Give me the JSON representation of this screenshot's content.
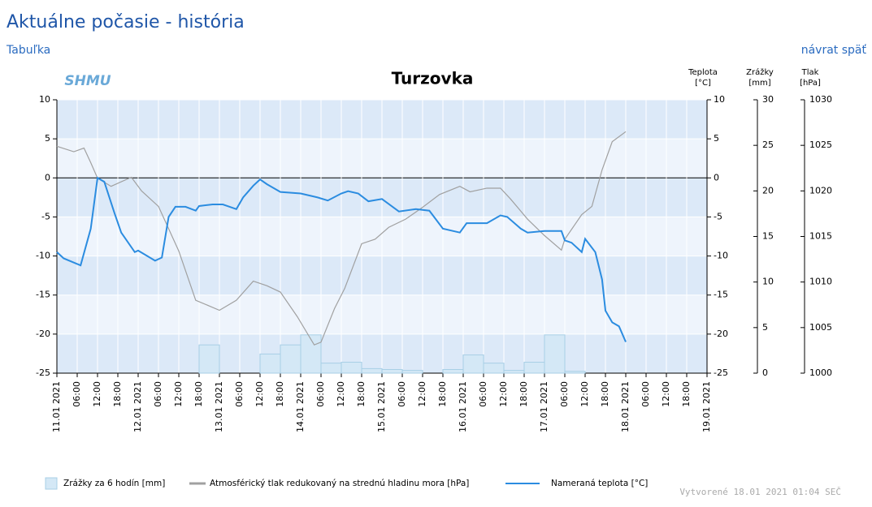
{
  "header": {
    "title": "Aktuálne počasie - história",
    "link_left": "Tabuľka",
    "link_right": "návrat späť"
  },
  "logo": "SHMU",
  "footer": "Vytvorené 18.01 2021 01:04 SEČ",
  "chart_data": {
    "type": "line",
    "title": "Turzovka",
    "y_label": [
      "Teplota",
      "[°C]"
    ],
    "y2_label": [
      "Zrážky",
      "[mm]"
    ],
    "y3_label": [
      "Tlak",
      "[hPa]"
    ],
    "ylim": [
      -25,
      10
    ],
    "yticks": [
      10,
      5,
      0,
      -5,
      -10,
      -15,
      -20,
      -25
    ],
    "y2lim": [
      0,
      30
    ],
    "y2ticks": [
      30,
      25,
      20,
      15,
      10,
      5,
      0
    ],
    "y3lim": [
      1000,
      1030
    ],
    "y3ticks": [
      1030,
      1025,
      1020,
      1015,
      1010,
      1005,
      1000
    ],
    "xlim": [
      "2021-01-11 00:00",
      "2021-01-19 00:00"
    ],
    "xticks": [
      {
        "value": "2021-01-11 00:00",
        "label": "11.01 2021"
      },
      {
        "value": "2021-01-11 06:00",
        "label": "06:00"
      },
      {
        "value": "2021-01-11 12:00",
        "label": "12:00"
      },
      {
        "value": "2021-01-11 18:00",
        "label": "18:00"
      },
      {
        "value": "2021-01-12 00:00",
        "label": "12.01 2021"
      },
      {
        "value": "2021-01-12 06:00",
        "label": "06:00"
      },
      {
        "value": "2021-01-12 12:00",
        "label": "12:00"
      },
      {
        "value": "2021-01-12 18:00",
        "label": "18:00"
      },
      {
        "value": "2021-01-13 00:00",
        "label": "13.01 2021"
      },
      {
        "value": "2021-01-13 06:00",
        "label": "06:00"
      },
      {
        "value": "2021-01-13 12:00",
        "label": "12:00"
      },
      {
        "value": "2021-01-13 18:00",
        "label": "18:00"
      },
      {
        "value": "2021-01-14 00:00",
        "label": "14.01 2021"
      },
      {
        "value": "2021-01-14 06:00",
        "label": "06:00"
      },
      {
        "value": "2021-01-14 12:00",
        "label": "12:00"
      },
      {
        "value": "2021-01-14 18:00",
        "label": "18:00"
      },
      {
        "value": "2021-01-15 00:00",
        "label": "15.01 2021"
      },
      {
        "value": "2021-01-15 06:00",
        "label": "06:00"
      },
      {
        "value": "2021-01-15 12:00",
        "label": "12:00"
      },
      {
        "value": "2021-01-15 18:00",
        "label": "18:00"
      },
      {
        "value": "2021-01-16 00:00",
        "label": "16.01 2021"
      },
      {
        "value": "2021-01-16 06:00",
        "label": "06:00"
      },
      {
        "value": "2021-01-16 12:00",
        "label": "12:00"
      },
      {
        "value": "2021-01-16 18:00",
        "label": "18:00"
      },
      {
        "value": "2021-01-17 00:00",
        "label": "17.01 2021"
      },
      {
        "value": "2021-01-17 06:00",
        "label": "06:00"
      },
      {
        "value": "2021-01-17 12:00",
        "label": "12:00"
      },
      {
        "value": "2021-01-17 18:00",
        "label": "18:00"
      },
      {
        "value": "2021-01-18 00:00",
        "label": "18.01 2021"
      },
      {
        "value": "2021-01-18 06:00",
        "label": "06:00"
      },
      {
        "value": "2021-01-18 12:00",
        "label": "12:00"
      },
      {
        "value": "2021-01-18 18:00",
        "label": "18:00"
      },
      {
        "value": "2021-01-19 00:00",
        "label": "19.01 2021"
      }
    ],
    "grid": true,
    "series": [
      {
        "name": "Zrážky za 6 hodín [mm]",
        "kind": "bar",
        "axis": "y2",
        "color": "#a8cfe6",
        "x": [
          "2021-01-12 18:00",
          "2021-01-13 12:00",
          "2021-01-13 18:00",
          "2021-01-14 00:00",
          "2021-01-14 06:00",
          "2021-01-14 12:00",
          "2021-01-14 18:00",
          "2021-01-15 00:00",
          "2021-01-15 06:00",
          "2021-01-15 18:00",
          "2021-01-16 00:00",
          "2021-01-16 06:00",
          "2021-01-16 12:00",
          "2021-01-16 18:00",
          "2021-01-17 00:00",
          "2021-01-17 06:00"
        ],
        "values": [
          3.1,
          2.1,
          3.1,
          4.2,
          1.1,
          1.2,
          0.5,
          0.4,
          0.3,
          0.4,
          2.0,
          1.1,
          0.3,
          1.2,
          4.2,
          0.2
        ]
      },
      {
        "name": "Atmosférický tlak redukovaný na strednú hladinu mora [hPa]",
        "kind": "line",
        "axis": "y3",
        "color": "#a0a0a0",
        "x": [
          "2021-01-11 00:00",
          "2021-01-11 05:00",
          "2021-01-11 08:00",
          "2021-01-11 10:00",
          "2021-01-11 12:00",
          "2021-01-11 16:00",
          "2021-01-11 22:00",
          "2021-01-12 01:00",
          "2021-01-12 06:00",
          "2021-01-12 12:00",
          "2021-01-12 17:00",
          "2021-01-13 00:00",
          "2021-01-13 05:00",
          "2021-01-13 10:00",
          "2021-01-13 14:00",
          "2021-01-13 18:00",
          "2021-01-13 23:00",
          "2021-01-14 04:00",
          "2021-01-14 06:00",
          "2021-01-14 10:00",
          "2021-01-14 13:00",
          "2021-01-14 18:00",
          "2021-01-14 22:00",
          "2021-01-15 02:00",
          "2021-01-15 07:00",
          "2021-01-15 12:00",
          "2021-01-15 17:00",
          "2021-01-15 23:00",
          "2021-01-16 02:00",
          "2021-01-16 07:00",
          "2021-01-16 11:00",
          "2021-01-16 14:00",
          "2021-01-16 19:00",
          "2021-01-17 00:00",
          "2021-01-17 05:00",
          "2021-01-17 06:00",
          "2021-01-17 11:00",
          "2021-01-17 14:00",
          "2021-01-17 17:00",
          "2021-01-17 20:00",
          "2021-01-18 00:00"
        ],
        "values": [
          1024.9,
          1024.3,
          1024.7,
          1023.1,
          1021.4,
          1020.5,
          1021.5,
          1020,
          1018.3,
          1013.4,
          1008,
          1006.9,
          1008,
          1010.1,
          1009.6,
          1008.9,
          1006.2,
          1003.1,
          1003.4,
          1007.1,
          1009.3,
          1014.2,
          1014.7,
          1016,
          1016.9,
          1018.2,
          1019.6,
          1020.5,
          1019.9,
          1020.3,
          1020.3,
          1019.1,
          1016.9,
          1015.1,
          1013.5,
          1014.7,
          1017.4,
          1018.3,
          1022.3,
          1025.4,
          1026.5
        ]
      },
      {
        "name": "Nameraná teplota [°C]",
        "kind": "line",
        "axis": "y",
        "color": "#2b8ce0",
        "x": [
          "2021-01-11 00:00",
          "2021-01-11 02:00",
          "2021-01-11 07:00",
          "2021-01-11 10:00",
          "2021-01-11 12:00",
          "2021-01-11 14:00",
          "2021-01-11 17:00",
          "2021-01-11 19:00",
          "2021-01-11 23:00",
          "2021-01-12 00:00",
          "2021-01-12 05:00",
          "2021-01-12 07:00",
          "2021-01-12 09:00",
          "2021-01-12 11:00",
          "2021-01-12 14:00",
          "2021-01-12 17:00",
          "2021-01-12 18:00",
          "2021-01-12 22:00",
          "2021-01-13 01:00",
          "2021-01-13 05:00",
          "2021-01-13 07:00",
          "2021-01-13 10:00",
          "2021-01-13 12:00",
          "2021-01-13 14:00",
          "2021-01-13 18:00",
          "2021-01-14 00:00",
          "2021-01-14 05:00",
          "2021-01-14 08:00",
          "2021-01-14 12:00",
          "2021-01-14 14:00",
          "2021-01-14 17:00",
          "2021-01-14 20:00",
          "2021-01-15 00:00",
          "2021-01-15 05:00",
          "2021-01-15 10:00",
          "2021-01-15 14:00",
          "2021-01-15 18:00",
          "2021-01-15 23:00",
          "2021-01-16 01:00",
          "2021-01-16 07:00",
          "2021-01-16 11:00",
          "2021-01-16 13:00",
          "2021-01-16 17:00",
          "2021-01-16 19:00",
          "2021-01-17 00:00",
          "2021-01-17 05:00",
          "2021-01-17 06:00",
          "2021-01-17 08:00",
          "2021-01-17 11:00",
          "2021-01-17 12:00",
          "2021-01-17 15:00",
          "2021-01-17 17:00",
          "2021-01-17 18:00",
          "2021-01-17 20:00",
          "2021-01-17 22:00",
          "2021-01-18 00:00"
        ],
        "values": [
          -9.5,
          -10.3,
          -11.2,
          -6.5,
          0,
          -0.5,
          -4.5,
          -7,
          -9.5,
          -9.3,
          -10.6,
          -10.2,
          -5,
          -3.7,
          -3.7,
          -4.2,
          -3.6,
          -3.4,
          -3.4,
          -4,
          -2.5,
          -1,
          -0.2,
          -0.8,
          -1.8,
          -2,
          -2.5,
          -2.9,
          -2,
          -1.7,
          -2,
          -3,
          -2.7,
          -4.3,
          -4,
          -4.2,
          -6.5,
          -7,
          -5.8,
          -5.8,
          -4.8,
          -5,
          -6.5,
          -7,
          -6.8,
          -6.8,
          -8,
          -8.3,
          -9.5,
          -7.8,
          -9.5,
          -13,
          -17,
          -18.5,
          -19,
          -21
        ]
      }
    ]
  }
}
